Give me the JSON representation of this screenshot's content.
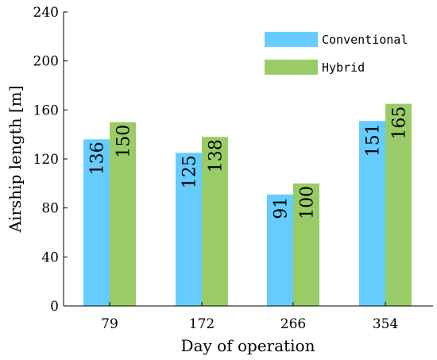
{
  "chart_data": {
    "type": "bar",
    "title": "",
    "xlabel": "Day of operation",
    "ylabel": "Airship length [m]",
    "categories": [
      "79",
      "172",
      "266",
      "354"
    ],
    "series": [
      {
        "name": "Conventional",
        "values": [
          136,
          125,
          91,
          151
        ],
        "color": "#66ccff"
      },
      {
        "name": "Hybrid",
        "values": [
          150,
          138,
          100,
          165
        ],
        "color": "#99cc66"
      }
    ],
    "ylim": [
      0,
      240
    ],
    "yticks": [
      "0",
      "40",
      "80",
      "120",
      "160",
      "200",
      "240"
    ],
    "grid": false,
    "legend_position": "top-right"
  }
}
